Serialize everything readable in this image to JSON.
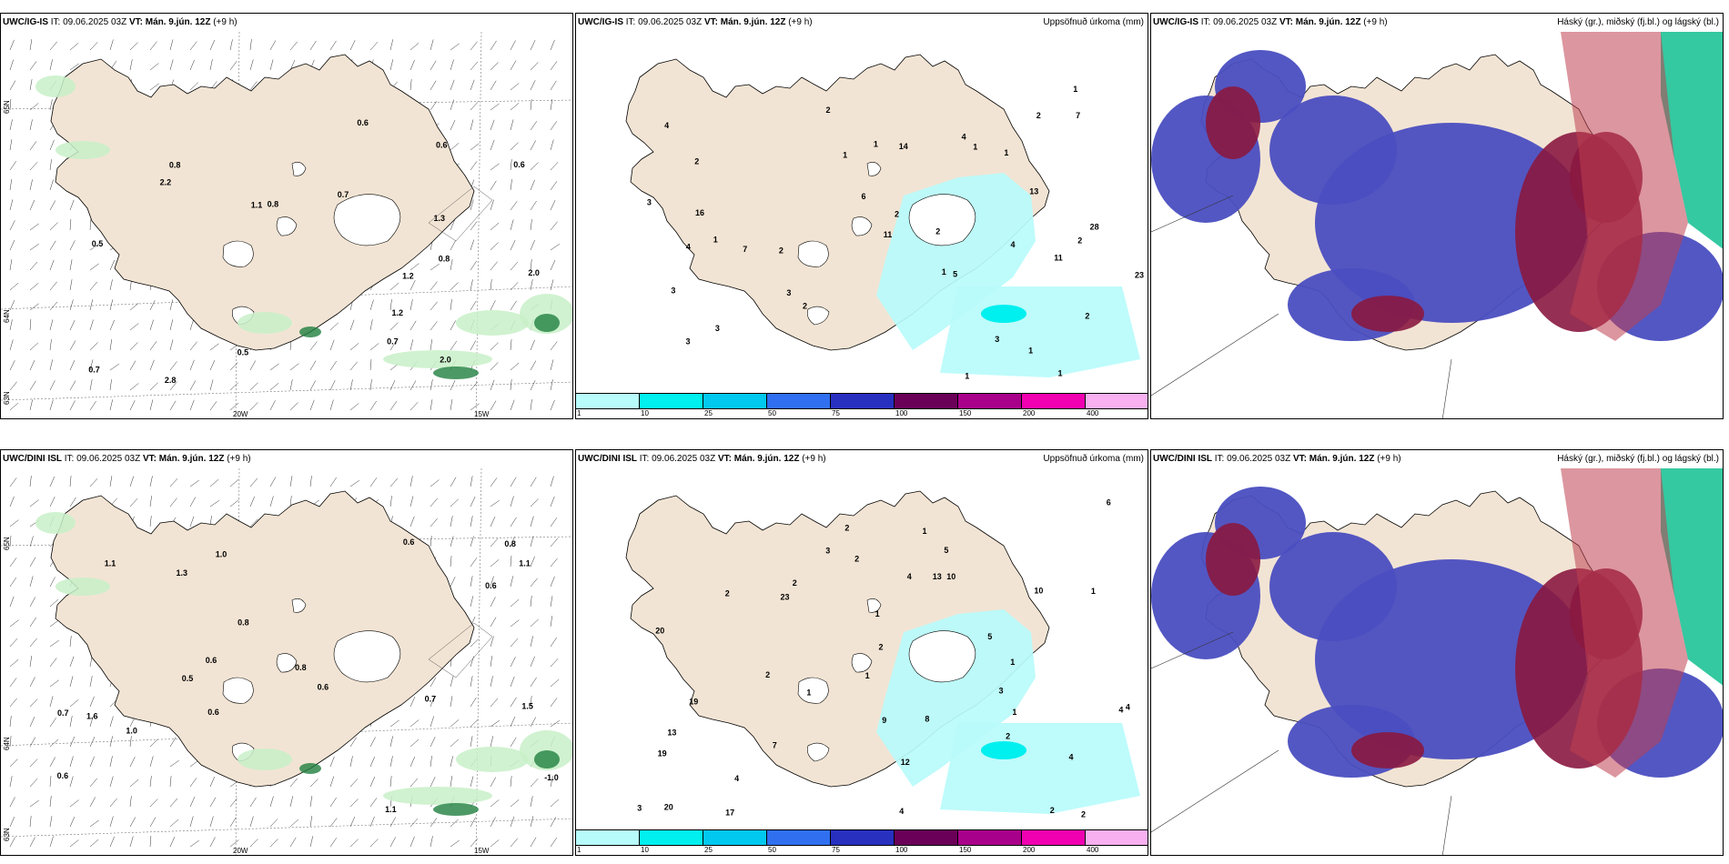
{
  "panels": [
    {
      "id": "top-left",
      "model": "UWC/IG-IS",
      "it_label": "IT:",
      "it_value": "09.06.2025 03Z",
      "vt_label": "VT:",
      "vt_value": "Mán. 9.jún. 12Z",
      "lead": "(+9 h)",
      "right_title": "",
      "lat_labels": [
        "65N",
        "64N",
        "63N"
      ],
      "lon_labels": [
        "20W",
        "15W"
      ],
      "numbers": [
        "1.3",
        "1.2",
        "0.7",
        "2.0",
        "2.2",
        "0.5",
        "0.7",
        "1.1",
        "0.6",
        "0.8",
        "0.7",
        "0.6",
        "0.8",
        "0.5",
        "2.8",
        "2.0",
        "0.8",
        "0.6",
        "1.2"
      ]
    },
    {
      "id": "top-middle",
      "model": "UWC/IG-IS",
      "it_label": "IT:",
      "it_value": "09.06.2025 03Z",
      "vt_label": "VT:",
      "vt_value": "Mán. 9.jún. 12Z",
      "lead": "(+9 h)",
      "right_title": "Uppsöfnuð úrkoma (mm)",
      "lat_labels": [],
      "lon_labels": [],
      "numbers": [
        "1",
        "1",
        "1",
        "4",
        "2",
        "2",
        "3",
        "2",
        "1",
        "1",
        "1",
        "1",
        "2",
        "2",
        "2",
        "3",
        "4",
        "2",
        "3",
        "3",
        "1",
        "14",
        "13",
        "23",
        "28",
        "16",
        "7",
        "11",
        "6",
        "7",
        "5",
        "4",
        "3",
        "4",
        "1",
        "11",
        "2",
        "3",
        "2",
        "1"
      ]
    },
    {
      "id": "top-right",
      "model": "UWC/IG-IS",
      "it_label": "IT:",
      "it_value": "09.06.2025 03Z",
      "vt_label": "VT:",
      "vt_value": "Mán. 9.jún. 12Z",
      "lead": "(+9 h)",
      "right_title": "Háský (gr.), miðský (fj.bl.) og lágský (bl.)",
      "lat_labels": [],
      "lon_labels": [],
      "numbers": []
    },
    {
      "id": "bottom-left",
      "model": "UWC/DINI ISL",
      "it_label": "IT:",
      "it_value": "09.06.2025 03Z",
      "vt_label": "VT:",
      "vt_value": "Mán. 9.jún. 12Z",
      "lead": "(+9 h)",
      "right_title": "",
      "lat_labels": [
        "65N",
        "64N",
        "63N"
      ],
      "lon_labels": [
        "20W",
        "15W"
      ],
      "numbers": [
        "0.8",
        "0.7",
        "1.1",
        "0.6",
        "1.1",
        "0.6",
        "0.6",
        "-1.0",
        "0.7",
        "0.8",
        "0.6",
        "1.6",
        "0.8",
        "1.5",
        "1.0",
        "0.6",
        "1.3",
        "1.0",
        "0.5",
        "0.6",
        "1.1"
      ]
    },
    {
      "id": "bottom-middle",
      "model": "UWC/DINI ISL",
      "it_label": "IT:",
      "it_value": "09.06.2025 03Z",
      "vt_label": "VT:",
      "vt_value": "Mán. 9.jún. 12Z",
      "lead": "(+9 h)",
      "right_title": "Uppsöfnuð úrkoma (mm)",
      "lat_labels": [],
      "lon_labels": [],
      "numbers": [
        "1",
        "2",
        "1",
        "4",
        "1",
        "1",
        "1",
        "2",
        "2",
        "2",
        "2",
        "2",
        "5",
        "6",
        "4",
        "2",
        "2",
        "4",
        "4",
        "1",
        "12",
        "10",
        "20",
        "17",
        "19",
        "20",
        "9",
        "8",
        "23",
        "10",
        "4",
        "13",
        "2",
        "7",
        "3",
        "5",
        "19",
        "13",
        "4",
        "3",
        "3",
        "1"
      ]
    },
    {
      "id": "bottom-right",
      "model": "UWC/DINI ISL",
      "it_label": "IT:",
      "it_value": "09.06.2025 03Z",
      "vt_label": "VT:",
      "vt_value": "Mán. 9.jún. 12Z",
      "lead": "(+9 h)",
      "right_title": "Háský (gr.), miðský (fj.bl.) og lágský (bl.)",
      "lat_labels": [],
      "lon_labels": [],
      "numbers": []
    }
  ],
  "legend": {
    "labels": [
      "1",
      "10",
      "25",
      "50",
      "75",
      "100",
      "150",
      "200",
      "400"
    ],
    "colors": [
      "#b8fbfb",
      "#00efef",
      "#00c8ef",
      "#3070f0",
      "#2830c0",
      "#6a0058",
      "#a8008a",
      "#f000b0",
      "#f8b0f0"
    ]
  },
  "colors": {
    "land": "#f2e4d4",
    "precip_light": "#b8fbfb",
    "precip_mid": "#00efef",
    "wind_green_light": "#c8f0c8",
    "wind_green_dark": "#208040",
    "cloud_low": "#4a4ec0",
    "cloud_mid": "#8a1840",
    "cloud_high": "#10c090",
    "contour": "#000000"
  }
}
